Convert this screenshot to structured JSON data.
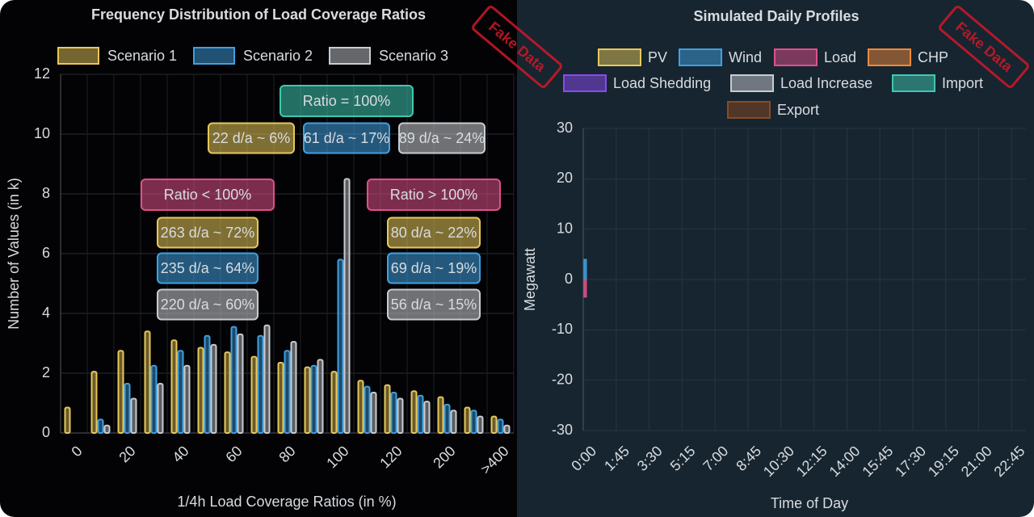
{
  "chart_data": [
    {
      "type": "bar",
      "title": "Frequency Distribution of Load Coverage Ratios",
      "watermark": "Fake Data",
      "xlabel": "1/4h Load Coverage Ratios (in %)",
      "ylabel": "Number of Values (in k)",
      "categories": [
        "0",
        null,
        "20",
        null,
        "40",
        null,
        "60",
        null,
        "80",
        null,
        "100",
        null,
        "120",
        null,
        "200",
        null,
        ">400"
      ],
      "series": [
        {
          "name": "Scenario 1",
          "color": "#e8c85a",
          "values": [
            0.85,
            2.05,
            2.75,
            3.4,
            3.1,
            2.85,
            2.7,
            2.55,
            2.35,
            2.2,
            2.05,
            1.75,
            1.6,
            1.4,
            1.2,
            0.85,
            0.55
          ]
        },
        {
          "name": "Scenario 2",
          "color": "#3fa0e0",
          "values": [
            0,
            0.45,
            1.65,
            2.25,
            2.75,
            3.25,
            3.55,
            3.25,
            2.75,
            2.25,
            5.8,
            1.55,
            1.35,
            1.25,
            0.95,
            0.75,
            0.45
          ]
        },
        {
          "name": "Scenario 3",
          "color": "#c8ccd0",
          "values": [
            0,
            0.25,
            1.15,
            1.65,
            2.25,
            2.95,
            3.3,
            3.6,
            3.05,
            2.45,
            8.5,
            1.35,
            1.15,
            1.05,
            0.75,
            0.55,
            0.25
          ]
        }
      ],
      "ylim": [
        0,
        12
      ],
      "yticks": [
        0,
        2,
        4,
        6,
        8,
        10,
        12
      ],
      "grid": true,
      "annotations": [
        {
          "header": "Ratio = 100%",
          "color": "#40c8b0",
          "labels": [
            "22 d/a ~ 6%",
            "61 d/a ~ 17%",
            "89 d/a ~ 24%"
          ]
        },
        {
          "header": "Ratio < 100%",
          "color": "#e0508a",
          "labels": [
            "263 d/a ~ 72%",
            "235 d/a ~ 64%",
            "220 d/a ~ 60%"
          ]
        },
        {
          "header": "Ratio > 100%",
          "color": "#e0508a",
          "labels": [
            "80 d/a ~ 22%",
            "69 d/a ~ 19%",
            "56 d/a ~ 15%"
          ]
        }
      ]
    },
    {
      "type": "bar",
      "title": "Simulated Daily Profiles",
      "watermark": "Fake Data",
      "xlabel": "Time of Day",
      "ylabel": "Megawatt",
      "categories": [
        "0:00",
        "1:45",
        "3:30",
        "5:15",
        "7:00",
        "8:45",
        "10:30",
        "12:15",
        "14:00",
        "15:45",
        "17:30",
        "19:15",
        "21:00",
        "22:45"
      ],
      "series": [
        {
          "name": "PV",
          "color": "#e8c85a",
          "values": [
            null,
            null,
            null,
            null,
            null,
            null,
            null,
            null,
            null,
            null,
            null,
            null,
            null,
            null
          ]
        },
        {
          "name": "Wind",
          "color": "#3fa0e0",
          "values": [
            4,
            null,
            null,
            null,
            null,
            null,
            null,
            null,
            null,
            null,
            null,
            null,
            null,
            null
          ]
        },
        {
          "name": "Load",
          "color": "#e0508a",
          "values": [
            -3.5,
            null,
            null,
            null,
            null,
            null,
            null,
            null,
            null,
            null,
            null,
            null,
            null,
            null
          ]
        },
        {
          "name": "CHP",
          "color": "#f08a3a",
          "values": [
            null,
            null,
            null,
            null,
            null,
            null,
            null,
            null,
            null,
            null,
            null,
            null,
            null,
            null
          ]
        },
        {
          "name": "Load Shedding",
          "color": "#8a4af0",
          "values": [
            null,
            null,
            null,
            null,
            null,
            null,
            null,
            null,
            null,
            null,
            null,
            null,
            null,
            null
          ]
        },
        {
          "name": "Load Increase",
          "color": "#c8ccd0",
          "values": [
            null,
            null,
            null,
            null,
            null,
            null,
            null,
            null,
            null,
            null,
            null,
            null,
            null,
            null
          ]
        },
        {
          "name": "Import",
          "color": "#40c8b0",
          "values": [
            null,
            null,
            null,
            null,
            null,
            null,
            null,
            null,
            null,
            null,
            null,
            null,
            null,
            null
          ]
        },
        {
          "name": "Export",
          "color": "#8a4a20",
          "values": [
            null,
            null,
            null,
            null,
            null,
            null,
            null,
            null,
            null,
            null,
            null,
            null,
            null,
            null
          ]
        }
      ],
      "ylim": [
        -30,
        30
      ],
      "yticks": [
        -30,
        -20,
        -10,
        0,
        10,
        20,
        30
      ],
      "grid": true
    }
  ]
}
